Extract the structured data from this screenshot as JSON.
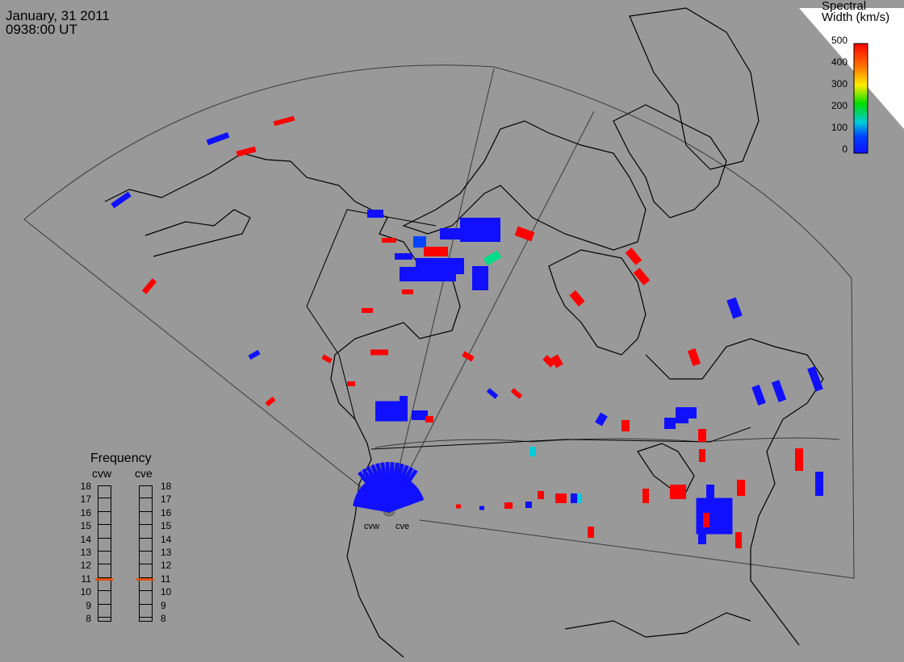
{
  "header": {
    "date": "January, 31 2011",
    "time": "0938:00 UT"
  },
  "colorbar": {
    "title_line1": "Spectral",
    "title_line2": "Width (km/s)",
    "ticks": [
      "500",
      "400",
      "300",
      "200",
      "100",
      "0"
    ],
    "colors": [
      "#ff0000",
      "#ff7a00",
      "#ffee00",
      "#00dd00",
      "#00ccdd",
      "#0040ff",
      "#1010ff"
    ]
  },
  "frequency_panel": {
    "title": "Frequency",
    "radars": [
      {
        "name": "cvw",
        "value_mhz": 11
      },
      {
        "name": "cve",
        "value_mhz": 11
      }
    ],
    "scale": [
      "18",
      "17",
      "16",
      "15",
      "14",
      "13",
      "12",
      "11",
      "10",
      "9",
      "8"
    ]
  },
  "sites": [
    {
      "name": "cvw"
    },
    {
      "name": "cve"
    }
  ],
  "colors": {
    "background": "#999999",
    "land_outline": "#000000",
    "fov_outline": "#444444",
    "high_width": "#ff0000",
    "low_width": "#1010ff",
    "mid_width": "#00ccdd"
  }
}
